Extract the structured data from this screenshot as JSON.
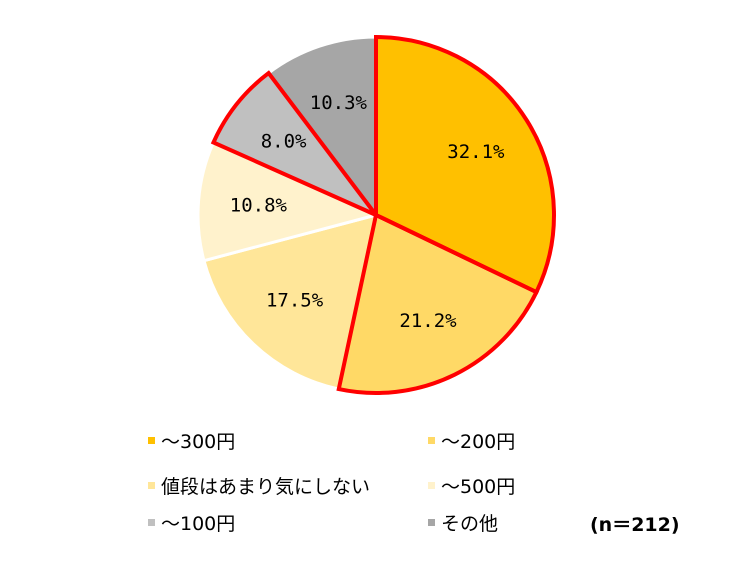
{
  "chart_data": {
    "type": "pie",
    "start_angle_deg": 0,
    "direction": "clockwise",
    "categories": [
      "～300円",
      "～200円",
      "値段はあまり気にしない",
      "～500円",
      "～100円",
      "その他"
    ],
    "values": [
      32.1,
      21.2,
      17.5,
      10.8,
      8.0,
      10.3
    ],
    "labels": [
      "32.1%",
      "21.2%",
      "17.5%",
      "10.8%",
      "8.0%",
      "10.3%"
    ],
    "colors": [
      "#FFC000",
      "#FFD966",
      "#FFE699",
      "#FFF2CC",
      "#C0C0C0",
      "#A6A6A6"
    ],
    "highlighted": [
      "～300円",
      "～200円",
      "～100円"
    ],
    "highlight_color": "#FF0000",
    "legend_position": "bottom"
  },
  "legend": {
    "items": [
      {
        "label": "～300円",
        "color": "#FFC000"
      },
      {
        "label": "～200円",
        "color": "#FFD966"
      },
      {
        "label": "値段はあまり気にしない",
        "color": "#FFE699"
      },
      {
        "label": "～500円",
        "color": "#FFF2CC"
      },
      {
        "label": "～100円",
        "color": "#C0C0C0"
      },
      {
        "label": "その他",
        "color": "#A6A6A6"
      }
    ]
  },
  "sample_size": "(n＝212)"
}
